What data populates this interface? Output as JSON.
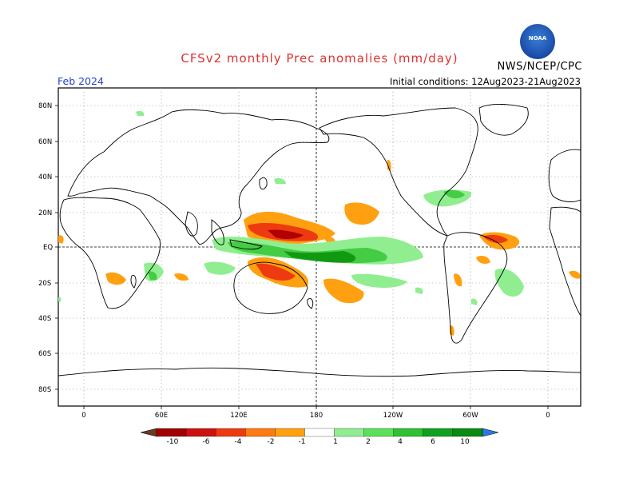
{
  "header": {
    "title": "CFSv2 monthly Prec anomalies (mm/day)",
    "month": "Feb 2024",
    "initial_conditions": "Initial conditions: 12Aug2023-21Aug2023",
    "org": "NWS/NCEP/CPC",
    "logo_text": "NOAA"
  },
  "axes": {
    "lat_labels": [
      "80N",
      "60N",
      "40N",
      "20N",
      "EQ",
      "20S",
      "40S",
      "60S",
      "80S"
    ],
    "lon_labels": [
      "0",
      "60E",
      "120E",
      "180",
      "120W",
      "60W",
      "0"
    ]
  },
  "colorbar": {
    "labels": [
      "-10",
      "-6",
      "-4",
      "-2",
      "-1",
      "1",
      "2",
      "4",
      "6",
      "10"
    ],
    "colors": [
      "#6b3a22",
      "#a00000",
      "#cc1010",
      "#ee3a10",
      "#ff7a10",
      "#ffa010",
      "#ffffff",
      "#90ee90",
      "#5ce05c",
      "#30c030",
      "#10a020",
      "#0a8a10",
      "#2a7ae0"
    ]
  },
  "colors": {
    "title": "#e03030",
    "month": "#2244cc",
    "positive_light": "#90ee90",
    "positive_mid": "#44cc44",
    "positive_dark": "#119911",
    "negative_light": "#ffa010",
    "negative_mid": "#ee3a10",
    "negative_dark": "#b00000"
  }
}
